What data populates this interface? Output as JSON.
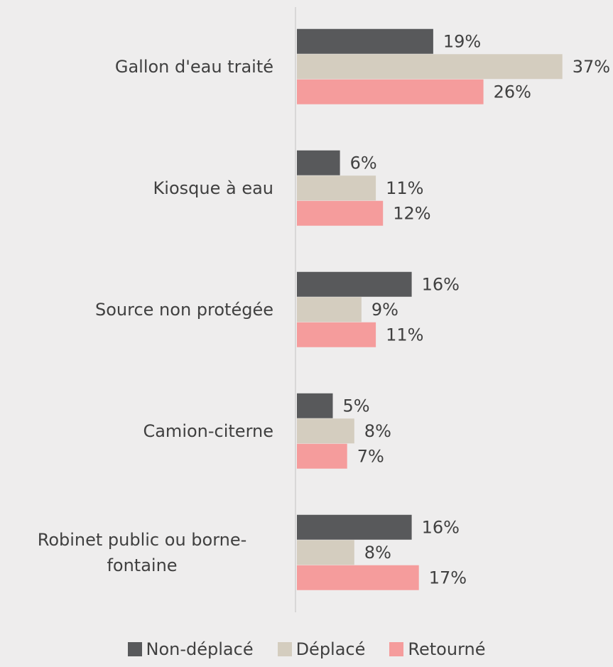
{
  "chart_data": {
    "type": "bar",
    "orientation": "horizontal",
    "categories": [
      "Gallon d'eau traité",
      "Kiosque à eau",
      "Source non protégée",
      "Camion-citerne",
      "Robinet public ou borne-fontaine"
    ],
    "series": [
      {
        "name": "Non-déplacé",
        "color": "#58595b",
        "values": [
          19,
          6,
          16,
          5,
          16
        ],
        "value_labels": [
          "19%",
          "6%",
          "16%",
          "5%",
          "16%"
        ]
      },
      {
        "name": "Déplacé",
        "color": "#d4cdbf",
        "values": [
          37,
          11,
          9,
          8,
          8
        ],
        "value_labels": [
          "37%",
          "11%",
          "9%",
          "8%",
          "8%"
        ]
      },
      {
        "name": "Retourné",
        "color": "#f59c9c",
        "values": [
          26,
          12,
          11,
          7,
          17
        ],
        "value_labels": [
          "26%",
          "12%",
          "11%",
          "7%",
          "17%"
        ]
      }
    ],
    "legend": "bottom"
  }
}
